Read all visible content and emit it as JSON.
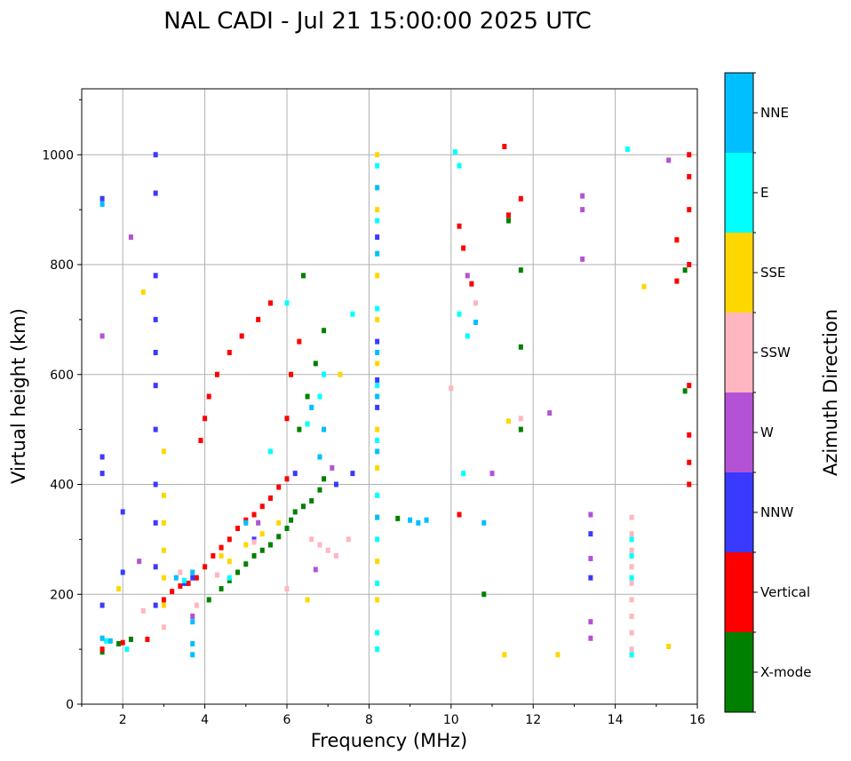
{
  "chart_data": {
    "type": "scatter",
    "title": "NAL CADI - Jul 21 15:00:00 2025 UTC",
    "xlabel": "Frequency (MHz)",
    "ylabel": "Virtual height (km)",
    "xlim": [
      1,
      16
    ],
    "ylim": [
      0,
      1120
    ],
    "xticks": [
      2,
      4,
      6,
      8,
      10,
      12,
      14,
      16
    ],
    "yticks": [
      0,
      200,
      400,
      600,
      800,
      1000
    ],
    "grid": true,
    "colorbar": {
      "title": "Azimuth Direction",
      "categories": [
        "X-mode",
        "Vertical",
        "NNW",
        "W",
        "SSW",
        "SSE",
        "E",
        "NNE"
      ],
      "colors": [
        "#008000",
        "#ff0000",
        "#3a3aff",
        "#b452d6",
        "#ffb6c1",
        "#ffd700",
        "#00ffff",
        "#00bfff"
      ]
    },
    "series": [
      {
        "name": "X-mode",
        "points": [
          [
            1.5,
            95
          ],
          [
            1.9,
            110
          ],
          [
            2.2,
            118
          ],
          [
            4.1,
            190
          ],
          [
            4.4,
            210
          ],
          [
            4.6,
            225
          ],
          [
            4.8,
            240
          ],
          [
            5.0,
            255
          ],
          [
            5.2,
            270
          ],
          [
            5.4,
            280
          ],
          [
            5.6,
            290
          ],
          [
            5.8,
            305
          ],
          [
            6.0,
            320
          ],
          [
            6.1,
            335
          ],
          [
            6.2,
            350
          ],
          [
            6.4,
            360
          ],
          [
            6.6,
            370
          ],
          [
            6.8,
            390
          ],
          [
            6.9,
            410
          ],
          [
            6.3,
            500
          ],
          [
            6.5,
            560
          ],
          [
            6.7,
            620
          ],
          [
            6.9,
            680
          ],
          [
            6.4,
            780
          ],
          [
            8.7,
            338
          ],
          [
            10.8,
            200
          ],
          [
            11.4,
            880
          ],
          [
            11.7,
            790
          ],
          [
            11.7,
            650
          ],
          [
            11.7,
            500
          ],
          [
            15.7,
            790
          ],
          [
            15.7,
            570
          ]
        ]
      },
      {
        "name": "Vertical",
        "points": [
          [
            1.5,
            100
          ],
          [
            2.0,
            112
          ],
          [
            2.6,
            118
          ],
          [
            3.0,
            190
          ],
          [
            3.2,
            205
          ],
          [
            3.4,
            215
          ],
          [
            3.6,
            220
          ],
          [
            3.8,
            230
          ],
          [
            4.0,
            250
          ],
          [
            4.2,
            270
          ],
          [
            4.4,
            285
          ],
          [
            4.6,
            300
          ],
          [
            4.8,
            320
          ],
          [
            5.0,
            335
          ],
          [
            5.2,
            345
          ],
          [
            5.4,
            360
          ],
          [
            5.6,
            375
          ],
          [
            5.8,
            395
          ],
          [
            6.0,
            410
          ],
          [
            3.9,
            480
          ],
          [
            4.0,
            520
          ],
          [
            4.1,
            560
          ],
          [
            4.3,
            600
          ],
          [
            4.6,
            640
          ],
          [
            4.9,
            670
          ],
          [
            5.3,
            700
          ],
          [
            5.6,
            730
          ],
          [
            6.0,
            520
          ],
          [
            6.1,
            600
          ],
          [
            6.3,
            660
          ],
          [
            10.2,
            345
          ],
          [
            10.2,
            870
          ],
          [
            10.3,
            830
          ],
          [
            10.5,
            765
          ],
          [
            11.3,
            1015
          ],
          [
            11.4,
            890
          ],
          [
            11.7,
            920
          ],
          [
            15.8,
            1000
          ],
          [
            15.8,
            960
          ],
          [
            15.8,
            900
          ],
          [
            15.8,
            800
          ],
          [
            15.8,
            580
          ],
          [
            15.8,
            490
          ],
          [
            15.8,
            440
          ],
          [
            15.8,
            400
          ],
          [
            15.5,
            845
          ],
          [
            15.5,
            770
          ]
        ]
      },
      {
        "name": "NNW",
        "points": [
          [
            1.5,
            920
          ],
          [
            1.5,
            450
          ],
          [
            1.5,
            420
          ],
          [
            1.5,
            180
          ],
          [
            2.0,
            350
          ],
          [
            2.0,
            240
          ],
          [
            2.8,
            1000
          ],
          [
            2.8,
            930
          ],
          [
            2.8,
            780
          ],
          [
            2.8,
            700
          ],
          [
            2.8,
            640
          ],
          [
            2.8,
            580
          ],
          [
            2.8,
            500
          ],
          [
            2.8,
            400
          ],
          [
            2.8,
            330
          ],
          [
            2.8,
            250
          ],
          [
            2.8,
            180
          ],
          [
            3.5,
            220
          ],
          [
            3.7,
            230
          ],
          [
            5.2,
            300
          ],
          [
            6.2,
            420
          ],
          [
            7.2,
            400
          ],
          [
            7.6,
            420
          ],
          [
            8.2,
            850
          ],
          [
            8.2,
            660
          ],
          [
            8.2,
            590
          ],
          [
            8.2,
            540
          ],
          [
            13.4,
            310
          ],
          [
            13.4,
            230
          ]
        ]
      },
      {
        "name": "W",
        "points": [
          [
            1.5,
            670
          ],
          [
            2.2,
            850
          ],
          [
            2.4,
            260
          ],
          [
            3.7,
            160
          ],
          [
            5.3,
            330
          ],
          [
            6.7,
            245
          ],
          [
            7.1,
            430
          ],
          [
            10.4,
            780
          ],
          [
            11.0,
            420
          ],
          [
            12.4,
            530
          ],
          [
            13.2,
            925
          ],
          [
            13.2,
            900
          ],
          [
            13.2,
            810
          ],
          [
            13.4,
            345
          ],
          [
            13.4,
            265
          ],
          [
            13.4,
            150
          ],
          [
            13.4,
            120
          ],
          [
            15.3,
            990
          ]
        ]
      },
      {
        "name": "SSW",
        "points": [
          [
            2.5,
            170
          ],
          [
            3.0,
            140
          ],
          [
            3.4,
            240
          ],
          [
            3.8,
            180
          ],
          [
            4.3,
            235
          ],
          [
            5.2,
            295
          ],
          [
            6.0,
            210
          ],
          [
            6.6,
            300
          ],
          [
            6.8,
            290
          ],
          [
            7.0,
            280
          ],
          [
            7.2,
            270
          ],
          [
            7.5,
            300
          ],
          [
            10.0,
            575
          ],
          [
            10.6,
            730
          ],
          [
            11.7,
            520
          ],
          [
            14.4,
            340
          ],
          [
            14.4,
            310
          ],
          [
            14.4,
            280
          ],
          [
            14.4,
            250
          ],
          [
            14.4,
            220
          ],
          [
            14.4,
            190
          ],
          [
            14.4,
            160
          ],
          [
            14.4,
            130
          ],
          [
            14.4,
            100
          ]
        ]
      },
      {
        "name": "SSE",
        "points": [
          [
            1.9,
            210
          ],
          [
            2.5,
            750
          ],
          [
            3.0,
            380
          ],
          [
            3.0,
            330
          ],
          [
            3.0,
            280
          ],
          [
            3.0,
            230
          ],
          [
            3.0,
            180
          ],
          [
            3.0,
            460
          ],
          [
            4.4,
            270
          ],
          [
            4.6,
            260
          ],
          [
            5.0,
            290
          ],
          [
            5.4,
            310
          ],
          [
            5.8,
            330
          ],
          [
            6.5,
            190
          ],
          [
            7.3,
            600
          ],
          [
            8.2,
            1000
          ],
          [
            8.2,
            900
          ],
          [
            8.2,
            780
          ],
          [
            8.2,
            700
          ],
          [
            8.2,
            620
          ],
          [
            8.2,
            500
          ],
          [
            8.2,
            430
          ],
          [
            8.2,
            340
          ],
          [
            8.2,
            260
          ],
          [
            8.2,
            190
          ],
          [
            11.3,
            90
          ],
          [
            11.4,
            515
          ],
          [
            12.6,
            90
          ],
          [
            14.7,
            760
          ],
          [
            15.3,
            105
          ]
        ]
      },
      {
        "name": "E",
        "points": [
          [
            1.6,
            115
          ],
          [
            2.1,
            100
          ],
          [
            3.5,
            225
          ],
          [
            4.6,
            230
          ],
          [
            5.6,
            460
          ],
          [
            6.0,
            730
          ],
          [
            6.5,
            510
          ],
          [
            6.8,
            560
          ],
          [
            6.9,
            600
          ],
          [
            7.6,
            710
          ],
          [
            8.2,
            980
          ],
          [
            8.2,
            880
          ],
          [
            8.2,
            720
          ],
          [
            8.2,
            580
          ],
          [
            8.2,
            480
          ],
          [
            8.2,
            380
          ],
          [
            8.2,
            300
          ],
          [
            8.2,
            220
          ],
          [
            8.2,
            130
          ],
          [
            8.2,
            100
          ],
          [
            10.1,
            1005
          ],
          [
            10.2,
            980
          ],
          [
            10.2,
            710
          ],
          [
            10.3,
            420
          ],
          [
            10.4,
            670
          ],
          [
            14.3,
            1010
          ],
          [
            14.4,
            300
          ],
          [
            14.4,
            270
          ],
          [
            14.4,
            230
          ],
          [
            14.4,
            90
          ]
        ]
      },
      {
        "name": "NNE",
        "points": [
          [
            1.5,
            120
          ],
          [
            1.5,
            910
          ],
          [
            1.7,
            115
          ],
          [
            3.3,
            230
          ],
          [
            3.7,
            240
          ],
          [
            3.7,
            150
          ],
          [
            3.7,
            110
          ],
          [
            3.7,
            90
          ],
          [
            5.0,
            330
          ],
          [
            6.6,
            540
          ],
          [
            6.8,
            450
          ],
          [
            6.9,
            500
          ],
          [
            8.2,
            940
          ],
          [
            8.2,
            820
          ],
          [
            8.2,
            640
          ],
          [
            8.2,
            560
          ],
          [
            8.2,
            460
          ],
          [
            8.2,
            340
          ],
          [
            9.0,
            335
          ],
          [
            9.2,
            330
          ],
          [
            9.4,
            335
          ],
          [
            10.6,
            695
          ],
          [
            10.8,
            330
          ]
        ]
      }
    ]
  }
}
